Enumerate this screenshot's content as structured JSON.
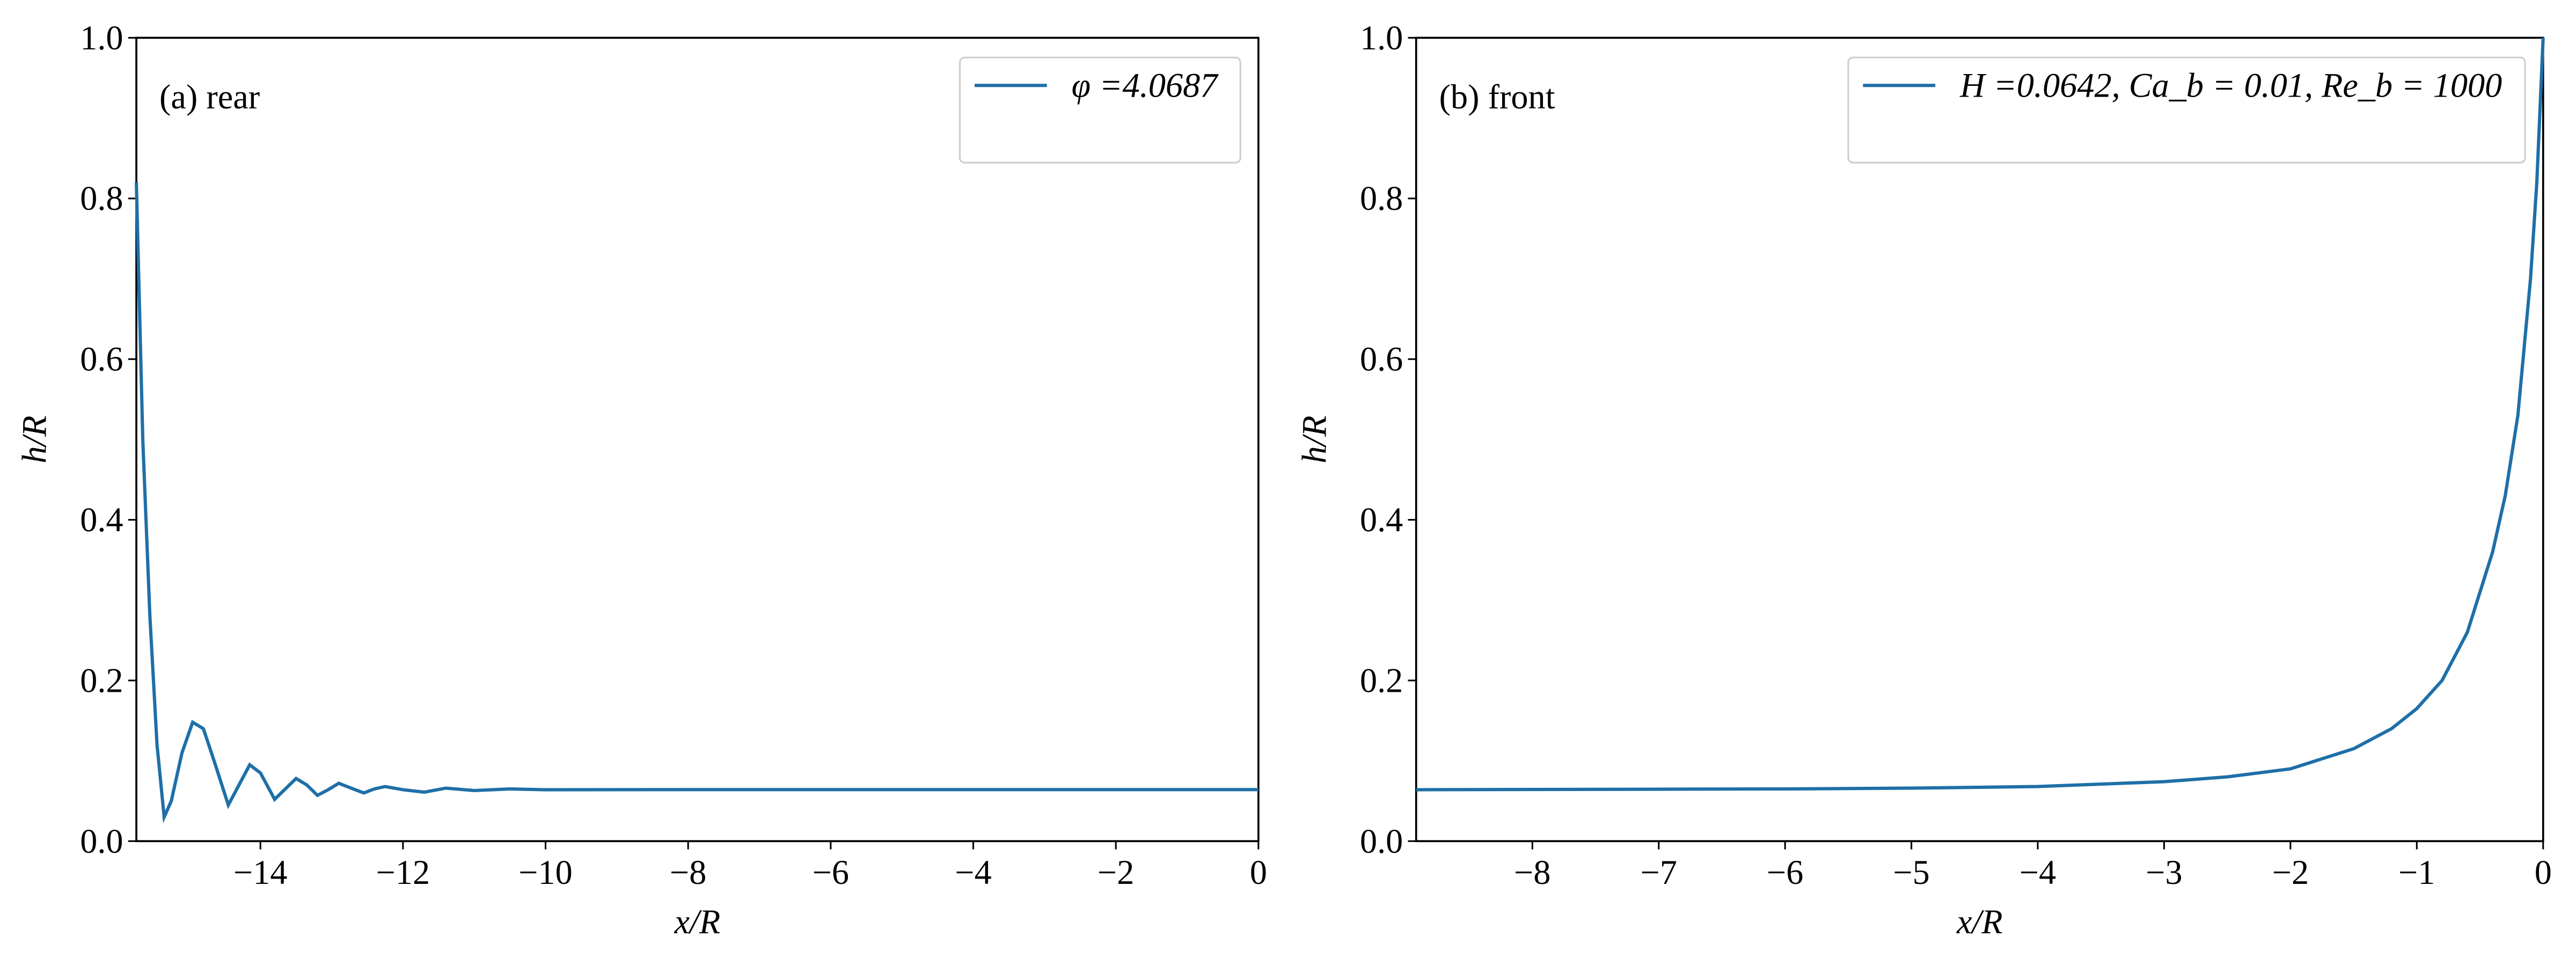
{
  "chart_data": [
    {
      "type": "line",
      "annotation": "(a) rear",
      "xlabel": "x/R",
      "ylabel": "h/R",
      "xlim": [
        -15.74,
        0
      ],
      "ylim": [
        0,
        1
      ],
      "xticks": [
        {
          "value": -14,
          "label": "−14"
        },
        {
          "value": -12,
          "label": "−12"
        },
        {
          "value": -10,
          "label": "−10"
        },
        {
          "value": -8,
          "label": "−8"
        },
        {
          "value": -6,
          "label": "−6"
        },
        {
          "value": -4,
          "label": "−4"
        },
        {
          "value": -2,
          "label": "−2"
        },
        0
      ],
      "yticks": [
        {
          "value": 0,
          "label": "0.0"
        },
        0.2,
        0.4,
        0.6,
        0.8,
        {
          "value": 1,
          "label": "1.0"
        }
      ],
      "legend": "upper right",
      "series": [
        {
          "name": "φ =4.0687",
          "color": "#1f6fa8",
          "x": [
            -15.74,
            -15.65,
            -15.55,
            -15.45,
            -15.35,
            -15.25,
            -15.1,
            -14.95,
            -14.8,
            -14.65,
            -14.45,
            -14.3,
            -14.15,
            -14.0,
            -13.8,
            -13.65,
            -13.5,
            -13.35,
            -13.2,
            -13.05,
            -12.9,
            -12.7,
            -12.55,
            -12.4,
            -12.25,
            -12.0,
            -11.7,
            -11.4,
            -11.0,
            -10.5,
            -10.0,
            -8,
            -6,
            -4,
            -2,
            0
          ],
          "values": [
            0.82,
            0.5,
            0.28,
            0.12,
            0.03,
            0.05,
            0.11,
            0.148,
            0.14,
            0.1,
            0.045,
            0.07,
            0.095,
            0.085,
            0.052,
            0.065,
            0.078,
            0.07,
            0.057,
            0.064,
            0.072,
            0.065,
            0.06,
            0.065,
            0.068,
            0.064,
            0.061,
            0.066,
            0.063,
            0.065,
            0.064,
            0.0642,
            0.0642,
            0.0642,
            0.0642,
            0.0642
          ]
        }
      ]
    },
    {
      "type": "line",
      "annotation": "(b) front",
      "xlabel": "x/R",
      "ylabel": "h/R",
      "xlim": [
        -8.92,
        0
      ],
      "ylim": [
        0,
        1
      ],
      "xticks": [
        {
          "value": -8,
          "label": "−8"
        },
        {
          "value": -7,
          "label": "−7"
        },
        {
          "value": -6,
          "label": "−6"
        },
        {
          "value": -5,
          "label": "−5"
        },
        {
          "value": -4,
          "label": "−4"
        },
        {
          "value": -3,
          "label": "−3"
        },
        {
          "value": -2,
          "label": "−2"
        },
        {
          "value": -1,
          "label": "−1"
        },
        0
      ],
      "yticks": [
        {
          "value": 0,
          "label": "0.0"
        },
        0.2,
        0.4,
        0.6,
        0.8,
        {
          "value": 1,
          "label": "1.0"
        }
      ],
      "legend": "upper right",
      "series": [
        {
          "name": "H =0.0642, Ca_b = 0.01, Re_b = 1000",
          "color": "#1f6fa8",
          "x": [
            -8.92,
            -6,
            -5,
            -4,
            -3,
            -2.5,
            -2,
            -1.5,
            -1.2,
            -1,
            -0.8,
            -0.6,
            -0.4,
            -0.3,
            -0.2,
            -0.1,
            -0.05,
            0
          ],
          "values": [
            0.064,
            0.065,
            0.066,
            0.068,
            0.074,
            0.08,
            0.09,
            0.115,
            0.14,
            0.165,
            0.2,
            0.26,
            0.36,
            0.43,
            0.53,
            0.7,
            0.82,
            1.0
          ]
        }
      ]
    }
  ]
}
